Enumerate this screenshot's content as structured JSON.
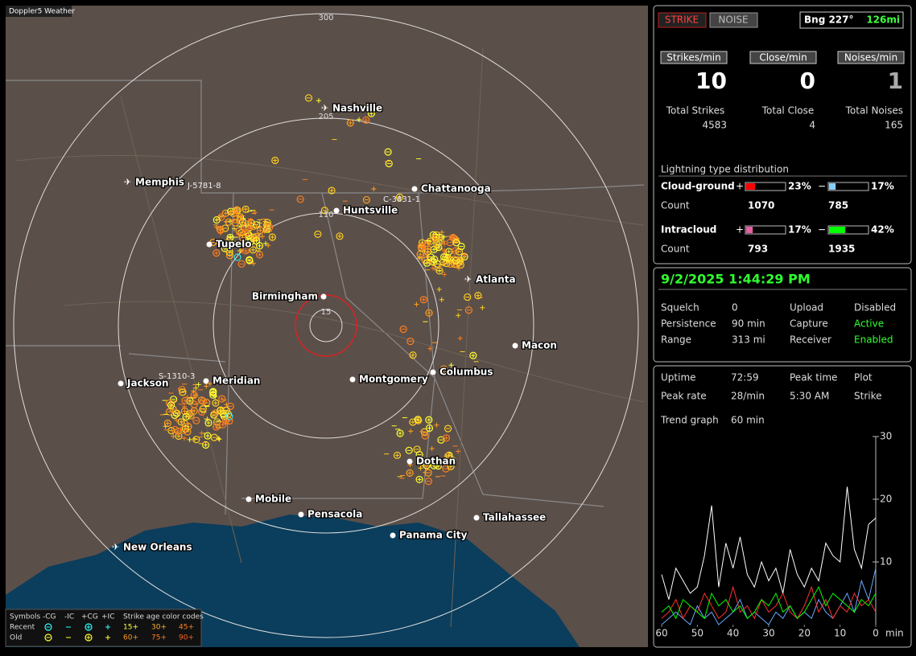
{
  "window_title": "Doppler5 Weather",
  "map": {
    "range_labels": [
      "300",
      "205",
      "110",
      "15"
    ],
    "cities": [
      "Nashville",
      "Memphis",
      "Chattanooga",
      "Huntsville",
      "Tupelo",
      "Atlanta",
      "Birmingham",
      "Macon",
      "Jackson",
      "Meridian",
      "Montgomery",
      "Columbus",
      "Dothan",
      "Mobile",
      "Pensacola",
      "Tallahassee",
      "Panama City",
      "New Orleans"
    ],
    "station_labels": [
      "J-5781-8",
      "C-3831-1",
      "S-1310-3"
    ]
  },
  "legend": {
    "symbols": "Symbols",
    "types": [
      "-CG",
      "-IC",
      "+CG",
      "+IC"
    ],
    "age_title": "Strike age color codes",
    "rows": [
      "Recent",
      "Old"
    ],
    "ages": [
      "15+",
      "30+",
      "45+",
      "60+",
      "75+",
      "90+"
    ]
  },
  "status": {
    "strike_button": "STRIKE",
    "noise_button": "NOISE",
    "bearing": "Bng 227°",
    "distance": "126mi"
  },
  "counters": {
    "labels": [
      "Strikes/min",
      "Close/min",
      "Noises/min"
    ],
    "values": [
      10,
      0,
      1
    ],
    "total_labels": [
      "Total Strikes",
      "Total Close",
      "Total Noises"
    ],
    "totals": [
      4583,
      4,
      165
    ]
  },
  "distribution": {
    "title": "Lightning type distribution",
    "count_label": "Count",
    "plus": "+",
    "minus": "−",
    "rows": [
      {
        "name": "Cloud-ground",
        "pos": 23,
        "pos_label": "23%",
        "neg": 17,
        "neg_label": "17%",
        "pos_count": 1070,
        "neg_count": 785
      },
      {
        "name": "Intracloud",
        "pos": 17,
        "pos_label": "17%",
        "neg": 42,
        "neg_label": "42%",
        "pos_count": 793,
        "neg_count": 1935
      }
    ]
  },
  "datetime": "9/2/2025 1:44:29 PM",
  "settings": [
    [
      "Squelch",
      "0",
      "Upload",
      "Disabled"
    ],
    [
      "Persistence",
      "90 min",
      "Capture",
      "Active"
    ],
    [
      "Range",
      "313 mi",
      "Receiver",
      "Enabled"
    ]
  ],
  "stats": {
    "uptime_label": "Uptime",
    "uptime": "72:59",
    "peak_time_label": "Peak time",
    "peak_time": "5:30 AM",
    "plot_label": "Plot",
    "plot": "Strike",
    "peak_rate_label": "Peak rate",
    "peak_rate": "28/min",
    "trend_label": "Trend graph",
    "trend": "60 min"
  },
  "trend_graph": {
    "x_unit": "min",
    "xlim": [
      60,
      0
    ],
    "xticks": [
      60,
      50,
      40,
      30,
      20,
      10,
      0
    ],
    "ylim": [
      0,
      30
    ],
    "yticks": [
      10,
      20,
      30
    ],
    "x": [
      60,
      58,
      56,
      54,
      52,
      50,
      48,
      46,
      44,
      42,
      40,
      38,
      36,
      34,
      32,
      30,
      28,
      26,
      24,
      22,
      20,
      18,
      16,
      14,
      12,
      10,
      8,
      6,
      4,
      2,
      0
    ],
    "series": [
      {
        "color": "#ffffff",
        "values": [
          8,
          4,
          9,
          7,
          5,
          6,
          11,
          19,
          6,
          13,
          9,
          14,
          8,
          6,
          10,
          7,
          9,
          5,
          12,
          8,
          6,
          9,
          7,
          13,
          11,
          10,
          22,
          12,
          9,
          16,
          17
        ]
      },
      {
        "color": "#00ff00",
        "values": [
          2,
          3,
          1,
          4,
          3,
          2,
          1,
          5,
          3,
          4,
          2,
          3,
          1,
          2,
          4,
          3,
          5,
          2,
          3,
          1,
          2,
          4,
          6,
          3,
          5,
          4,
          3,
          2,
          4,
          3,
          5
        ]
      },
      {
        "color": "#ff3030",
        "values": [
          1,
          2,
          4,
          1,
          3,
          2,
          5,
          3,
          1,
          2,
          6,
          2,
          3,
          1,
          4,
          2,
          3,
          5,
          2,
          1,
          3,
          6,
          2,
          4,
          1,
          3,
          2,
          5,
          3,
          4,
          2
        ]
      },
      {
        "color": "#6aa8ff",
        "values": [
          0,
          1,
          2,
          1,
          0,
          3,
          1,
          2,
          0,
          1,
          2,
          4,
          1,
          2,
          1,
          0,
          2,
          1,
          3,
          1,
          2,
          1,
          4,
          2,
          1,
          3,
          5,
          2,
          7,
          4,
          9
        ]
      }
    ]
  }
}
